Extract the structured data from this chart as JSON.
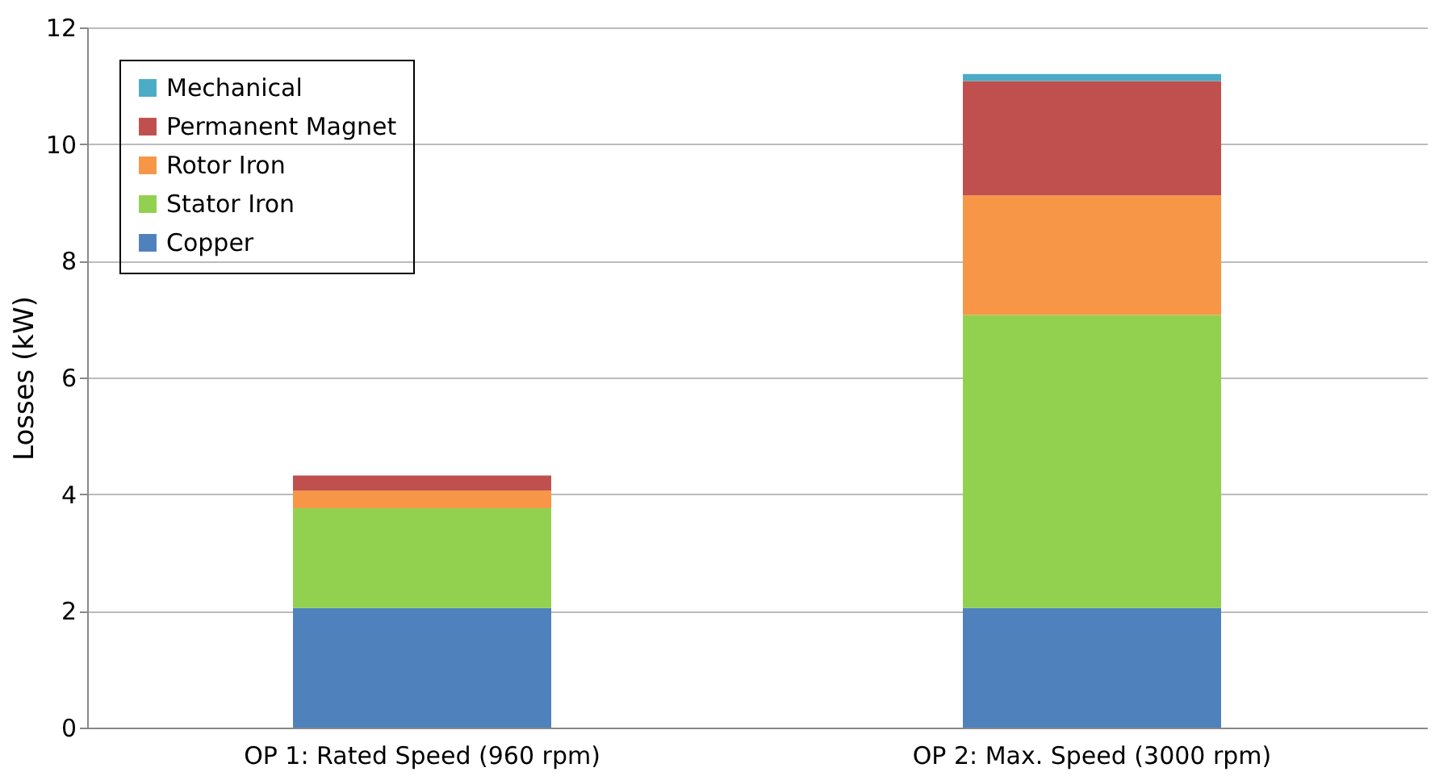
{
  "chart_data": {
    "type": "bar",
    "stacked": true,
    "ylabel": "Losses (kW)",
    "categories": [
      "OP 1: Rated Speed (960 rpm)",
      "OP 2: Max. Speed (3000 rpm)"
    ],
    "series": [
      {
        "name": "Copper",
        "color": "#4f81bd",
        "values": [
          2.05,
          2.05
        ]
      },
      {
        "name": "Stator Iron",
        "color": "#92d050",
        "values": [
          1.71,
          5.02
        ]
      },
      {
        "name": "Rotor Iron",
        "color": "#f79646",
        "values": [
          0.3,
          2.05
        ]
      },
      {
        "name": "Permanent Magnet",
        "color": "#c0504d",
        "values": [
          0.26,
          1.96
        ]
      },
      {
        "name": "Mechanical",
        "color": "#4bacc6",
        "values": [
          0,
          0.12
        ]
      }
    ],
    "ylim": [
      0,
      12
    ],
    "yticks": [
      0,
      2,
      4,
      6,
      8,
      10,
      12
    ],
    "grid": "y",
    "legend": "top left"
  }
}
